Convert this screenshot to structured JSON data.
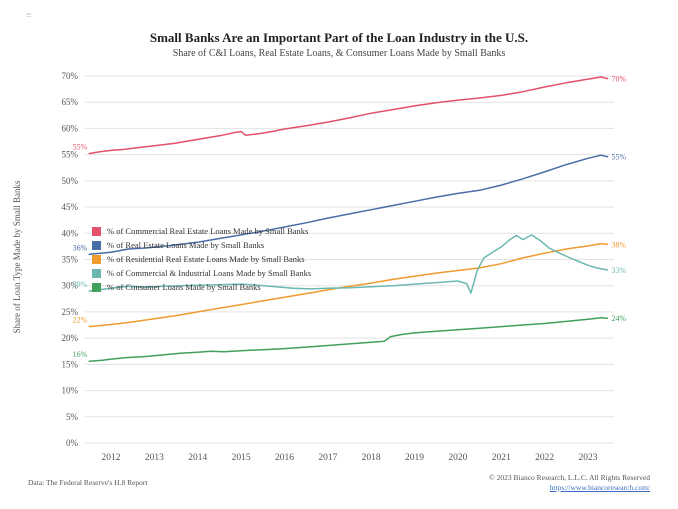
{
  "page": {
    "title": "Small Banks Are an Important Part of the Loan Industry in the U.S.",
    "subtitle": "Share of C&I Loans, Real Estate Loans, & Consumer Loans Made by Small Banks",
    "footer_left": "Data: The Federal Reserve's H.8 Report",
    "footer_right": "© 2023 Bianco Research, L.L.C. All Rights Reserved",
    "footer_link": "https://www.biancoresearch.com/",
    "corner_mark": "≡"
  },
  "chart_data": {
    "type": "line",
    "title": "Small Banks Are an Important Part of the Loan Industry in the U.S.",
    "subtitle": "Share of C&I Loans, Real Estate Loans, & Consumer Loans Made by Small Banks",
    "xlabel": "",
    "ylabel": "Share of Loan Type Made by Small Banks",
    "ylim": [
      0,
      70
    ],
    "ytick_step": 5,
    "ytick_format": "percent",
    "xlim": [
      2011.4,
      2023.6
    ],
    "xticks": [
      2012,
      2013,
      2014,
      2015,
      2016,
      2017,
      2018,
      2019,
      2020,
      2021,
      2022,
      2023
    ],
    "grid": "horizontal",
    "grid_color": "#e3e3e3",
    "tick_label_color": "#555555",
    "legend_position": "upper-left-inside",
    "series": [
      {
        "name": "% of Commercial Real Estate Loans Made by Small Banks",
        "color": "#e4506a",
        "start_label": "55%",
        "end_label": "70%",
        "points": [
          [
            2011.5,
            55.2
          ],
          [
            2011.7,
            55.5
          ],
          [
            2012.0,
            55.8
          ],
          [
            2012.3,
            56.0
          ],
          [
            2012.6,
            56.3
          ],
          [
            2013.0,
            56.7
          ],
          [
            2013.5,
            57.2
          ],
          [
            2014.0,
            57.9
          ],
          [
            2014.5,
            58.6
          ],
          [
            2014.9,
            59.3
          ],
          [
            2015.0,
            59.4
          ],
          [
            2015.1,
            58.7
          ],
          [
            2015.4,
            59.0
          ],
          [
            2015.7,
            59.4
          ],
          [
            2016.0,
            59.9
          ],
          [
            2016.5,
            60.5
          ],
          [
            2017.0,
            61.2
          ],
          [
            2017.5,
            62.0
          ],
          [
            2018.0,
            62.9
          ],
          [
            2018.5,
            63.6
          ],
          [
            2019.0,
            64.3
          ],
          [
            2019.5,
            64.9
          ],
          [
            2020.0,
            65.4
          ],
          [
            2020.5,
            65.8
          ],
          [
            2021.0,
            66.3
          ],
          [
            2021.5,
            67.0
          ],
          [
            2022.0,
            67.9
          ],
          [
            2022.5,
            68.7
          ],
          [
            2023.0,
            69.4
          ],
          [
            2023.3,
            69.8
          ],
          [
            2023.45,
            69.5
          ]
        ]
      },
      {
        "name": "% of Real Estate Loans Made by Small Banks",
        "color": "#4a6da7",
        "start_label": "36%",
        "end_label": "55%",
        "points": [
          [
            2011.5,
            36.0
          ],
          [
            2012.0,
            36.4
          ],
          [
            2012.4,
            37.0
          ],
          [
            2012.8,
            37.2
          ],
          [
            2013.2,
            37.5
          ],
          [
            2013.6,
            37.9
          ],
          [
            2014.0,
            38.3
          ],
          [
            2014.5,
            39.0
          ],
          [
            2015.0,
            39.7
          ],
          [
            2015.5,
            40.4
          ],
          [
            2016.0,
            41.2
          ],
          [
            2016.5,
            42.0
          ],
          [
            2017.0,
            42.9
          ],
          [
            2017.5,
            43.7
          ],
          [
            2018.0,
            44.5
          ],
          [
            2018.5,
            45.3
          ],
          [
            2019.0,
            46.1
          ],
          [
            2019.5,
            46.9
          ],
          [
            2020.0,
            47.6
          ],
          [
            2020.5,
            48.2
          ],
          [
            2021.0,
            49.2
          ],
          [
            2021.5,
            50.4
          ],
          [
            2022.0,
            51.7
          ],
          [
            2022.5,
            53.1
          ],
          [
            2023.0,
            54.3
          ],
          [
            2023.3,
            54.9
          ],
          [
            2023.45,
            54.6
          ]
        ]
      },
      {
        "name": "% of Residential Real Estate Loans Made by Small Banks",
        "color": "#ef9b2f",
        "start_label": "22%",
        "end_label": "38%",
        "points": [
          [
            2011.5,
            22.2
          ],
          [
            2012.0,
            22.6
          ],
          [
            2012.5,
            23.1
          ],
          [
            2013.0,
            23.7
          ],
          [
            2013.5,
            24.3
          ],
          [
            2014.0,
            25.0
          ],
          [
            2014.5,
            25.7
          ],
          [
            2015.0,
            26.4
          ],
          [
            2015.5,
            27.1
          ],
          [
            2016.0,
            27.8
          ],
          [
            2016.5,
            28.5
          ],
          [
            2017.0,
            29.2
          ],
          [
            2017.5,
            29.9
          ],
          [
            2018.0,
            30.5
          ],
          [
            2018.5,
            31.2
          ],
          [
            2019.0,
            31.8
          ],
          [
            2019.5,
            32.4
          ],
          [
            2020.0,
            32.9
          ],
          [
            2020.5,
            33.4
          ],
          [
            2021.0,
            34.2
          ],
          [
            2021.5,
            35.3
          ],
          [
            2022.0,
            36.2
          ],
          [
            2022.5,
            37.0
          ],
          [
            2023.0,
            37.6
          ],
          [
            2023.3,
            38.0
          ],
          [
            2023.45,
            37.9
          ]
        ]
      },
      {
        "name": "% of Commercial & Industrial Loans Made by Small Banks",
        "color": "#6cb8b0",
        "start_label": "29%",
        "end_label": "33%",
        "points": [
          [
            2011.5,
            29.0
          ],
          [
            2012.0,
            29.5
          ],
          [
            2012.4,
            29.9
          ],
          [
            2012.8,
            29.7
          ],
          [
            2013.2,
            29.9
          ],
          [
            2013.6,
            30.0
          ],
          [
            2014.0,
            30.1
          ],
          [
            2014.5,
            30.2
          ],
          [
            2015.0,
            30.3
          ],
          [
            2015.4,
            30.1
          ],
          [
            2015.8,
            29.8
          ],
          [
            2016.2,
            29.5
          ],
          [
            2016.6,
            29.4
          ],
          [
            2017.0,
            29.5
          ],
          [
            2017.5,
            29.6
          ],
          [
            2018.0,
            29.8
          ],
          [
            2018.5,
            30.0
          ],
          [
            2019.0,
            30.3
          ],
          [
            2019.5,
            30.6
          ],
          [
            2020.0,
            30.9
          ],
          [
            2020.2,
            30.4
          ],
          [
            2020.3,
            28.6
          ],
          [
            2020.45,
            33.0
          ],
          [
            2020.6,
            35.3
          ],
          [
            2020.8,
            36.4
          ],
          [
            2021.0,
            37.4
          ],
          [
            2021.2,
            38.8
          ],
          [
            2021.35,
            39.6
          ],
          [
            2021.5,
            38.8
          ],
          [
            2021.7,
            39.7
          ],
          [
            2021.9,
            38.6
          ],
          [
            2022.1,
            37.2
          ],
          [
            2022.4,
            36.0
          ],
          [
            2022.7,
            34.9
          ],
          [
            2023.0,
            33.9
          ],
          [
            2023.2,
            33.4
          ],
          [
            2023.45,
            33.0
          ]
        ]
      },
      {
        "name": "% of Consumer Loans Made by Small Banks",
        "color": "#42a05c",
        "start_label": "16%",
        "end_label": "24%",
        "points": [
          [
            2011.5,
            15.6
          ],
          [
            2011.8,
            15.8
          ],
          [
            2012.0,
            16.0
          ],
          [
            2012.4,
            16.3
          ],
          [
            2012.8,
            16.5
          ],
          [
            2013.2,
            16.8
          ],
          [
            2013.6,
            17.1
          ],
          [
            2014.0,
            17.3
          ],
          [
            2014.3,
            17.5
          ],
          [
            2014.6,
            17.4
          ],
          [
            2015.0,
            17.6
          ],
          [
            2015.5,
            17.8
          ],
          [
            2016.0,
            18.0
          ],
          [
            2016.5,
            18.3
          ],
          [
            2017.0,
            18.6
          ],
          [
            2017.5,
            18.9
          ],
          [
            2018.0,
            19.2
          ],
          [
            2018.3,
            19.4
          ],
          [
            2018.45,
            20.3
          ],
          [
            2018.7,
            20.7
          ],
          [
            2019.0,
            21.0
          ],
          [
            2019.5,
            21.3
          ],
          [
            2020.0,
            21.6
          ],
          [
            2020.5,
            21.9
          ],
          [
            2021.0,
            22.2
          ],
          [
            2021.5,
            22.5
          ],
          [
            2022.0,
            22.8
          ],
          [
            2022.5,
            23.2
          ],
          [
            2023.0,
            23.6
          ],
          [
            2023.3,
            23.9
          ],
          [
            2023.45,
            23.8
          ]
        ]
      }
    ]
  }
}
